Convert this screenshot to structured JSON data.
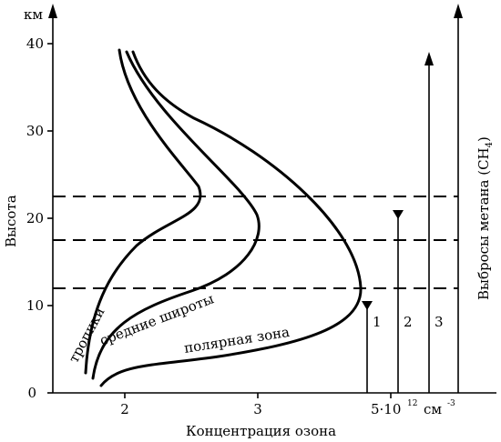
{
  "axes": {
    "y_unit": "км",
    "y_label": "Высота",
    "x_label": "Концентрация озона",
    "x_extra_tick": "5·10",
    "x_extra_exp": "12",
    "x_extra_unit": "см",
    "x_extra_unit_exp": "-3",
    "y_ticks": [
      "0",
      "10",
      "20",
      "30",
      "40"
    ],
    "x_ticks": [
      "2",
      "3"
    ]
  },
  "right_axis": {
    "label_main": "Выбросы метана (CH",
    "label_sub": "4",
    "label_end": ")"
  },
  "curves": {
    "tropics": "тропики",
    "midlat": "средние широты",
    "polar": "полярная зона"
  },
  "columns": {
    "c1": "1",
    "c2": "2",
    "c3": "3"
  },
  "levels_km": [
    12,
    17.5,
    22.5
  ],
  "column_heights_km": [
    10.5,
    21,
    39
  ]
}
